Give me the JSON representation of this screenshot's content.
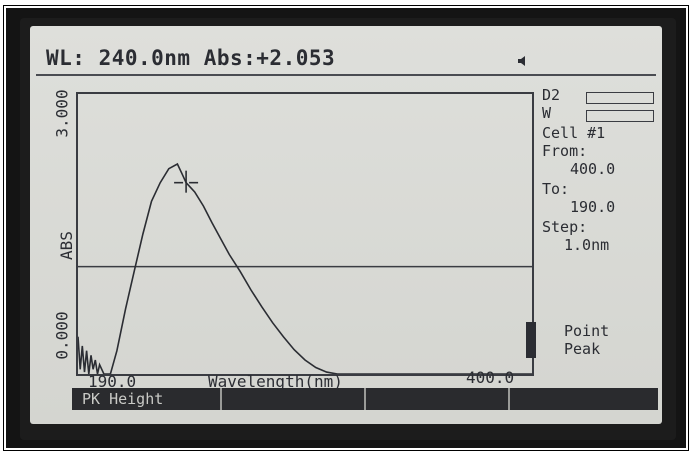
{
  "header": {
    "text": "WL: 240.0nm Abs:+2.053"
  },
  "y_axis": {
    "label": "ABS",
    "top_tick": "3.000",
    "bottom_tick": "0.000"
  },
  "x_axis": {
    "label": "Wavelength(nm)",
    "left_tick": "190.0",
    "right_tick": "400.0"
  },
  "side_panel": {
    "lamp_d2": "D2",
    "lamp_w": "W",
    "cell": "Cell #1",
    "from_label": "From:",
    "from_value": "400.0",
    "to_label": "To:",
    "to_value": "190.0",
    "step_label": "Step:",
    "step_value": "1.0nm",
    "mode_point": "Point",
    "mode_peak": "Peak"
  },
  "softkeys": [
    "PK Height",
    "",
    "",
    ""
  ],
  "icons": {
    "speaker": "speaker-icon",
    "cursor": "crosshair-cursor-icon"
  },
  "colors": {
    "lcd_background": "#d9dad6",
    "lcd_ink": "#2b2d33",
    "bezel": "#1c1c1c"
  },
  "chart_data": {
    "type": "line",
    "xlabel": "Wavelength(nm)",
    "ylabel": "ABS",
    "xlim": [
      190,
      400
    ],
    "ylim": [
      0,
      3
    ],
    "x": [
      190,
      191,
      192,
      193,
      194,
      195,
      196,
      197,
      198,
      199,
      200,
      202,
      205,
      208,
      212,
      216,
      220,
      224,
      228,
      232,
      236,
      238,
      240,
      242,
      244,
      248,
      252,
      256,
      260,
      265,
      270,
      275,
      280,
      285,
      290,
      295,
      300,
      305,
      310,
      315,
      320,
      330,
      340,
      360,
      380,
      400
    ],
    "y": [
      0.4,
      0.05,
      0.3,
      0.02,
      0.25,
      0.0,
      0.2,
      0.05,
      0.15,
      0.0,
      0.1,
      0.0,
      0.0,
      0.25,
      0.7,
      1.1,
      1.5,
      1.85,
      2.05,
      2.2,
      2.25,
      2.15,
      2.05,
      2.0,
      1.95,
      1.8,
      1.62,
      1.45,
      1.28,
      1.1,
      0.9,
      0.72,
      0.55,
      0.4,
      0.26,
      0.15,
      0.07,
      0.02,
      0.0,
      0.0,
      0.0,
      0.0,
      0.0,
      0.0,
      0.0,
      0.0
    ],
    "hline_y": 1.15,
    "cursor_x": 240
  }
}
